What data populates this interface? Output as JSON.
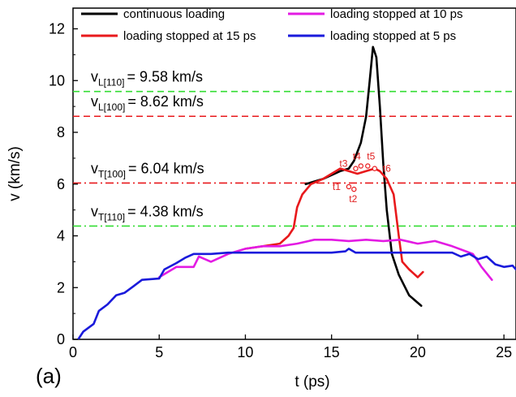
{
  "chart_data": {
    "type": "line",
    "panel_label": "(a)",
    "xlabel": "t (ps)",
    "ylabel": "v (km/s)",
    "xlim": [
      0,
      25.7
    ],
    "ylim": [
      0,
      12.8
    ],
    "xticks": [
      "0",
      "5",
      "10",
      "15",
      "20",
      "25"
    ],
    "yticks": [
      "0",
      "2",
      "4",
      "6",
      "8",
      "10",
      "12"
    ],
    "grid": false,
    "legend_placement": "top",
    "series": [
      {
        "name": "continuous loading",
        "color": "#000000",
        "points": [
          [
            13.5,
            6.0
          ],
          [
            14.5,
            6.2
          ],
          [
            15.5,
            6.5
          ],
          [
            16.0,
            6.6
          ],
          [
            16.3,
            6.9
          ],
          [
            16.7,
            7.6
          ],
          [
            17.0,
            8.6
          ],
          [
            17.2,
            9.9
          ],
          [
            17.4,
            11.3
          ],
          [
            17.6,
            10.9
          ],
          [
            17.8,
            9.0
          ],
          [
            18.0,
            6.8
          ],
          [
            18.2,
            5.0
          ],
          [
            18.5,
            3.3
          ],
          [
            18.9,
            2.5
          ],
          [
            19.5,
            1.7
          ],
          [
            20.2,
            1.3
          ]
        ]
      },
      {
        "name": "loading stopped at 15 ps",
        "color": "#e8191c",
        "points": [
          [
            10.0,
            3.5
          ],
          [
            11.0,
            3.6
          ],
          [
            12.0,
            3.7
          ],
          [
            12.5,
            4.0
          ],
          [
            12.8,
            4.3
          ],
          [
            13.0,
            5.1
          ],
          [
            13.3,
            5.6
          ],
          [
            13.8,
            6.0
          ],
          [
            14.5,
            6.2
          ],
          [
            15.0,
            6.4
          ],
          [
            15.5,
            6.6
          ],
          [
            16.0,
            6.5
          ],
          [
            16.5,
            6.4
          ],
          [
            17.0,
            6.5
          ],
          [
            17.5,
            6.6
          ],
          [
            17.8,
            6.5
          ],
          [
            18.2,
            6.2
          ],
          [
            18.6,
            5.6
          ],
          [
            18.9,
            4.0
          ],
          [
            19.1,
            3.0
          ],
          [
            19.5,
            2.7
          ],
          [
            20.0,
            2.4
          ],
          [
            20.3,
            2.6
          ]
        ]
      },
      {
        "name": "loading stopped at 10 ps",
        "color": "#e31be3",
        "points": [
          [
            5.0,
            2.4
          ],
          [
            5.5,
            2.6
          ],
          [
            6.0,
            2.8
          ],
          [
            7.0,
            2.8
          ],
          [
            7.3,
            3.2
          ],
          [
            8.0,
            3.0
          ],
          [
            9.0,
            3.3
          ],
          [
            10.0,
            3.5
          ],
          [
            11.0,
            3.6
          ],
          [
            12.0,
            3.6
          ],
          [
            13.0,
            3.7
          ],
          [
            14.0,
            3.85
          ],
          [
            15.0,
            3.85
          ],
          [
            16.0,
            3.8
          ],
          [
            17.0,
            3.85
          ],
          [
            18.0,
            3.8
          ],
          [
            19.0,
            3.85
          ],
          [
            20.0,
            3.7
          ],
          [
            21.0,
            3.8
          ],
          [
            22.0,
            3.6
          ],
          [
            22.8,
            3.4
          ],
          [
            23.2,
            3.3
          ],
          [
            23.7,
            2.8
          ],
          [
            24.3,
            2.3
          ]
        ]
      },
      {
        "name": "loading stopped at 5 ps",
        "color": "#1a1adb",
        "points": [
          [
            0.3,
            0.0
          ],
          [
            0.6,
            0.3
          ],
          [
            1.2,
            0.6
          ],
          [
            1.5,
            1.1
          ],
          [
            2.0,
            1.35
          ],
          [
            2.5,
            1.7
          ],
          [
            3.0,
            1.8
          ],
          [
            3.5,
            2.05
          ],
          [
            4.0,
            2.3
          ],
          [
            5.0,
            2.35
          ],
          [
            5.3,
            2.7
          ],
          [
            6.0,
            2.95
          ],
          [
            6.5,
            3.15
          ],
          [
            7.0,
            3.3
          ],
          [
            8.0,
            3.3
          ],
          [
            9.0,
            3.35
          ],
          [
            10.0,
            3.35
          ],
          [
            11.0,
            3.35
          ],
          [
            12.0,
            3.35
          ],
          [
            13.0,
            3.35
          ],
          [
            14.0,
            3.35
          ],
          [
            15.0,
            3.35
          ],
          [
            15.8,
            3.4
          ],
          [
            16.0,
            3.5
          ],
          [
            16.4,
            3.35
          ],
          [
            17.0,
            3.35
          ],
          [
            18.0,
            3.35
          ],
          [
            19.0,
            3.35
          ],
          [
            20.0,
            3.35
          ],
          [
            21.0,
            3.35
          ],
          [
            22.0,
            3.35
          ],
          [
            22.5,
            3.2
          ],
          [
            23.0,
            3.3
          ],
          [
            23.5,
            3.1
          ],
          [
            24.0,
            3.2
          ],
          [
            24.5,
            2.9
          ],
          [
            25.0,
            2.8
          ],
          [
            25.5,
            2.85
          ],
          [
            25.7,
            2.7
          ]
        ]
      }
    ],
    "reference_lines": [
      {
        "y": 9.58,
        "color": "#33dd33",
        "style": "dashed",
        "label_main": "v",
        "label_sub": "L[110]",
        "label_value": "= 9.58 km/s"
      },
      {
        "y": 8.62,
        "color": "#e8191c",
        "style": "dashed",
        "label_main": "v",
        "label_sub": "L[100]",
        "label_value": "= 8.62 km/s"
      },
      {
        "y": 6.04,
        "color": "#e8191c",
        "style": "dashdot",
        "label_main": "v",
        "label_sub": "T[100]",
        "label_value": "= 6.04 km/s"
      },
      {
        "y": 4.38,
        "color": "#33dd33",
        "style": "dashdot",
        "label_main": "v",
        "label_sub": "T[110]",
        "label_value": "= 4.38 km/s"
      }
    ],
    "markers": [
      {
        "label": "t1",
        "x": 16.0,
        "y": 5.9
      },
      {
        "label": "t2",
        "x": 16.3,
        "y": 5.8
      },
      {
        "label": "t3",
        "x": 16.4,
        "y": 6.6
      },
      {
        "label": "t4",
        "x": 16.7,
        "y": 6.7
      },
      {
        "label": "t5",
        "x": 17.1,
        "y": 6.7
      },
      {
        "label": "t6",
        "x": 17.5,
        "y": 6.6
      }
    ]
  }
}
